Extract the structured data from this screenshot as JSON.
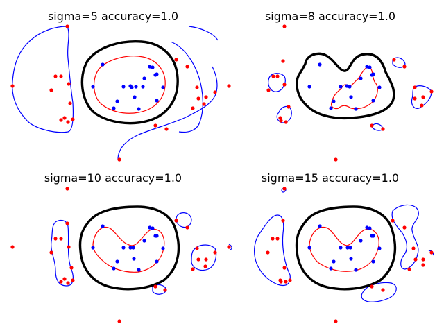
{
  "figure": {
    "background": "#ffffff",
    "colors": {
      "outer_contour": "#0000ff",
      "inner_contour": "#ff0000",
      "true_boundary": "#000000",
      "class_out_points": "#ff0000",
      "class_in_points": "#0000ff"
    }
  },
  "chart_data": [
    {
      "type": "scatter",
      "title": "sigma=5 accuracy=1.0",
      "axes": "off",
      "xlim": [
        -10,
        10
      ],
      "ylim": [
        -8,
        8
      ],
      "red_points": [
        [
          -4.9,
          7.0
        ],
        [
          -6.0,
          2.3
        ],
        [
          -6.0,
          1.0
        ],
        [
          -5.0,
          -1.0
        ],
        [
          -5.5,
          -1.6
        ],
        [
          -5.0,
          -2.6
        ],
        [
          -5.2,
          -3.0
        ],
        [
          -10.0,
          0.5
        ],
        [
          -6.7,
          0.0
        ],
        [
          0.0,
          -10.0
        ],
        [
          10.0,
          0.0
        ],
        [
          6.2,
          2.0
        ],
        [
          7.0,
          2.0
        ],
        [
          7.7,
          0.0
        ],
        [
          8.3,
          -0.5
        ],
        [
          8.0,
          -1.3
        ],
        [
          7.5,
          -1.5
        ],
        [
          8.5,
          -1.0
        ],
        [
          6.0,
          -3.5
        ],
        [
          4.8,
          -3.6
        ],
        [
          9.0,
          -0.2
        ]
      ],
      "blue_points": [
        [
          -1.0,
          2.0
        ],
        [
          -2.0,
          -1.0
        ],
        [
          -1.0,
          -2.0
        ],
        [
          0.0,
          0.0
        ],
        [
          0.6,
          0.0
        ],
        [
          1.0,
          0.0
        ],
        [
          1.5,
          1.0
        ],
        [
          1.0,
          -2.0
        ],
        [
          2.0,
          2.0
        ],
        [
          2.5,
          2.0
        ],
        [
          3.0,
          1.0
        ],
        [
          3.0,
          -1.0
        ],
        [
          2.5,
          -1.0
        ],
        [
          0.8,
          -1.0
        ],
        [
          -2.0,
          0.0
        ],
        [
          4.0,
          0.5
        ],
        [
          0.5,
          1.0
        ],
        [
          3.5,
          -1.3
        ]
      ],
      "contours": [
        "outer_decision_boundary",
        "inner_decision_boundary",
        "true_boundary"
      ]
    },
    {
      "type": "scatter",
      "title": "sigma=8 accuracy=1.0",
      "axes": "off",
      "xlim": [
        -10,
        10
      ],
      "ylim": [
        -8,
        8
      ],
      "red_points": [
        [
          -5.5,
          8.0
        ],
        [
          -5.8,
          2.5
        ],
        [
          -4.8,
          1.5
        ],
        [
          -6.8,
          1.5
        ],
        [
          -6.7,
          0.5
        ],
        [
          -6.3,
          -0.3
        ],
        [
          -5.5,
          -1.5
        ],
        [
          -6.0,
          -2.3
        ],
        [
          -6.0,
          -2.8
        ],
        [
          -5.5,
          -2.5
        ],
        [
          0.0,
          -10.0
        ],
        [
          8.0,
          2.5
        ],
        [
          6.5,
          1.5
        ],
        [
          6.0,
          1.0
        ],
        [
          8.0,
          -0.5
        ],
        [
          9.0,
          0.3
        ],
        [
          7.5,
          -1.5
        ],
        [
          8.5,
          -1.3
        ],
        [
          4.5,
          -3.5
        ],
        [
          3.8,
          -3.2
        ],
        [
          -5.0,
          -2.0
        ]
      ],
      "blue_points": [
        [
          -1.0,
          2.0
        ],
        [
          -2.0,
          -1.0
        ],
        [
          -1.0,
          -2.0
        ],
        [
          0.0,
          0.0
        ],
        [
          0.6,
          0.0
        ],
        [
          1.0,
          0.0
        ],
        [
          1.5,
          1.0
        ],
        [
          1.0,
          -2.0
        ],
        [
          2.0,
          2.0
        ],
        [
          2.5,
          2.0
        ],
        [
          3.0,
          1.0
        ],
        [
          3.0,
          -1.0
        ],
        [
          2.5,
          -1.0
        ],
        [
          0.8,
          -1.0
        ],
        [
          -2.0,
          0.0
        ],
        [
          4.0,
          0.5
        ],
        [
          0.5,
          1.0
        ],
        [
          3.5,
          -1.3
        ]
      ],
      "contours": [
        "outer_decision_boundary",
        "inner_decision_boundary",
        "true_boundary"
      ]
    },
    {
      "type": "scatter",
      "title": "sigma=10 accuracy=1.0",
      "axes": "off",
      "xlim": [
        -10,
        10
      ],
      "ylim": [
        -8,
        8
      ],
      "red_points": [
        [
          -5.0,
          8.0
        ],
        [
          -6.0,
          2.5
        ],
        [
          -6.5,
          1.0
        ],
        [
          -5.5,
          1.5
        ],
        [
          -5.0,
          -1.0
        ],
        [
          -5.0,
          -2.5
        ],
        [
          -5.5,
          -2.8
        ],
        [
          -6.0,
          -2.8
        ],
        [
          -7.0,
          -1.5
        ],
        [
          -6.5,
          -0.5
        ],
        [
          0.0,
          -10.0
        ],
        [
          10.0,
          0.0
        ],
        [
          6.0,
          1.5
        ],
        [
          6.5,
          0.8
        ],
        [
          8.0,
          -0.5
        ],
        [
          8.8,
          0.0
        ],
        [
          7.5,
          -1.5
        ],
        [
          8.5,
          -1.3
        ],
        [
          4.5,
          -3.5
        ],
        [
          3.8,
          -3.2
        ],
        [
          -10.0,
          0.5
        ]
      ],
      "blue_points": [
        [
          -1.0,
          2.0
        ],
        [
          -2.0,
          -1.0
        ],
        [
          -1.0,
          -2.0
        ],
        [
          0.0,
          0.0
        ],
        [
          0.6,
          0.0
        ],
        [
          1.0,
          0.0
        ],
        [
          1.5,
          1.0
        ],
        [
          1.0,
          -2.0
        ],
        [
          2.0,
          2.0
        ],
        [
          2.5,
          2.0
        ],
        [
          3.0,
          1.0
        ],
        [
          3.0,
          -1.0
        ],
        [
          2.5,
          -1.0
        ],
        [
          0.8,
          -1.0
        ],
        [
          -2.0,
          0.0
        ],
        [
          4.0,
          0.5
        ],
        [
          0.5,
          1.0
        ],
        [
          3.5,
          -1.3
        ]
      ],
      "contours": [
        "outer_decision_boundary",
        "inner_decision_boundary",
        "true_boundary"
      ]
    },
    {
      "type": "scatter",
      "title": "sigma=15 accuracy=1.0",
      "axes": "off",
      "xlim": [
        -10,
        10
      ],
      "ylim": [
        -8,
        8
      ],
      "red_points": [
        [
          -5.0,
          8.0
        ],
        [
          -6.0,
          2.5
        ],
        [
          -6.5,
          1.0
        ],
        [
          -5.5,
          1.5
        ],
        [
          -5.0,
          -1.0
        ],
        [
          -5.0,
          -2.5
        ],
        [
          -5.5,
          -2.8
        ],
        [
          -6.0,
          -2.8
        ],
        [
          -7.0,
          -1.5
        ],
        [
          -6.5,
          -0.5
        ],
        [
          0.0,
          -10.0
        ],
        [
          8.0,
          2.5
        ],
        [
          6.5,
          1.5
        ],
        [
          6.0,
          1.0
        ],
        [
          8.0,
          -0.5
        ],
        [
          9.0,
          0.3
        ],
        [
          7.5,
          -1.5
        ],
        [
          8.5,
          -1.3
        ],
        [
          4.5,
          -3.5
        ],
        [
          3.8,
          -3.2
        ],
        [
          -10.0,
          0.5
        ]
      ],
      "blue_points": [
        [
          -1.0,
          2.0
        ],
        [
          -2.0,
          -1.0
        ],
        [
          -1.0,
          -2.0
        ],
        [
          0.0,
          0.0
        ],
        [
          0.6,
          0.0
        ],
        [
          1.0,
          0.0
        ],
        [
          1.5,
          1.0
        ],
        [
          1.0,
          -2.0
        ],
        [
          2.0,
          2.0
        ],
        [
          2.5,
          2.0
        ],
        [
          3.0,
          1.0
        ],
        [
          3.0,
          -1.0
        ],
        [
          2.5,
          -1.0
        ],
        [
          0.8,
          -1.0
        ],
        [
          -2.0,
          0.0
        ],
        [
          4.0,
          0.5
        ],
        [
          0.5,
          1.0
        ],
        [
          3.5,
          -1.3
        ]
      ],
      "contours": [
        "outer_decision_boundary",
        "inner_decision_boundary",
        "true_boundary"
      ]
    }
  ]
}
